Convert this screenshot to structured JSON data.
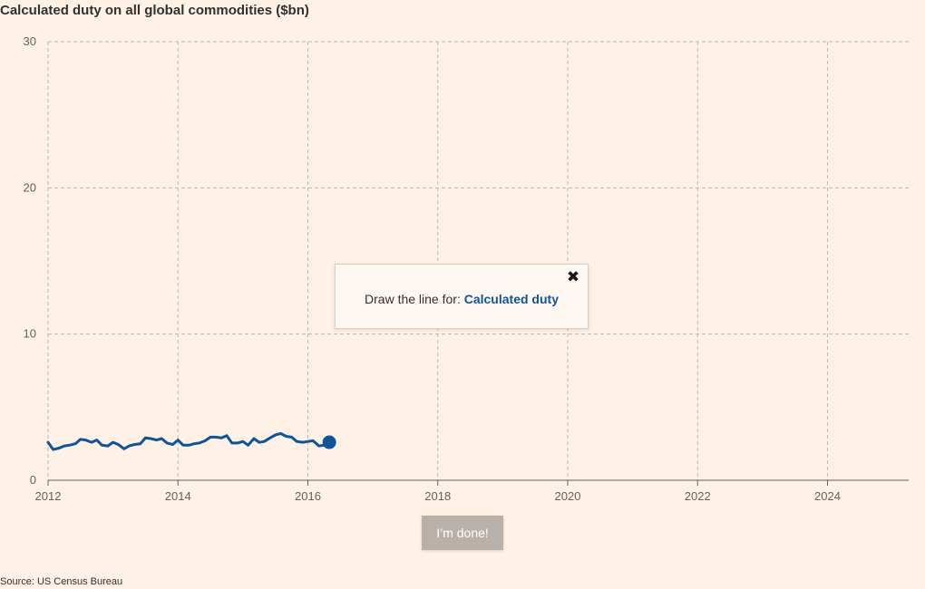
{
  "chart_data": {
    "type": "line",
    "title": "Calculated duty on all global commodities ($bn)",
    "xlabel": "",
    "ylabel": "",
    "xlim": [
      2012,
      2025.25
    ],
    "ylim": [
      0,
      30
    ],
    "x_ticks": [
      "2012",
      "2014",
      "2016",
      "2018",
      "2020",
      "2022",
      "2024"
    ],
    "y_ticks": [
      "0",
      "10",
      "20",
      "30"
    ],
    "grid": true,
    "series": [
      {
        "color": "#0f5499",
        "x": [
          2012.0,
          2012.08,
          2012.17,
          2012.25,
          2012.33,
          2012.42,
          2012.5,
          2012.58,
          2012.67,
          2012.75,
          2012.83,
          2012.92,
          2013.0,
          2013.08,
          2013.17,
          2013.25,
          2013.33,
          2013.42,
          2013.5,
          2013.58,
          2013.67,
          2013.75,
          2013.83,
          2013.92,
          2014.0,
          2014.08,
          2014.17,
          2014.25,
          2014.33,
          2014.42,
          2014.5,
          2014.58,
          2014.67,
          2014.75,
          2014.83,
          2014.92,
          2015.0,
          2015.08,
          2015.17,
          2015.25,
          2015.33,
          2015.42,
          2015.5,
          2015.58,
          2015.67,
          2015.75,
          2015.83,
          2015.92,
          2016.0,
          2016.08,
          2016.17,
          2016.25,
          2016.33
        ],
        "values": [
          2.6,
          2.1,
          2.2,
          2.35,
          2.4,
          2.5,
          2.8,
          2.75,
          2.6,
          2.75,
          2.4,
          2.35,
          2.6,
          2.45,
          2.15,
          2.35,
          2.45,
          2.5,
          2.9,
          2.85,
          2.75,
          2.85,
          2.55,
          2.45,
          2.75,
          2.4,
          2.4,
          2.5,
          2.55,
          2.7,
          2.95,
          2.95,
          2.9,
          3.05,
          2.55,
          2.55,
          2.65,
          2.4,
          2.85,
          2.6,
          2.65,
          2.9,
          3.1,
          3.2,
          3.0,
          2.95,
          2.65,
          2.6,
          2.65,
          2.7,
          2.35,
          2.4,
          2.6
        ]
      }
    ]
  },
  "prompt": {
    "text": "Draw the line for: ",
    "highlight": "Calculated duty",
    "close_icon": "close-icon"
  },
  "done_button": {
    "label": "I’m done!"
  },
  "source": "Source: US Census Bureau"
}
